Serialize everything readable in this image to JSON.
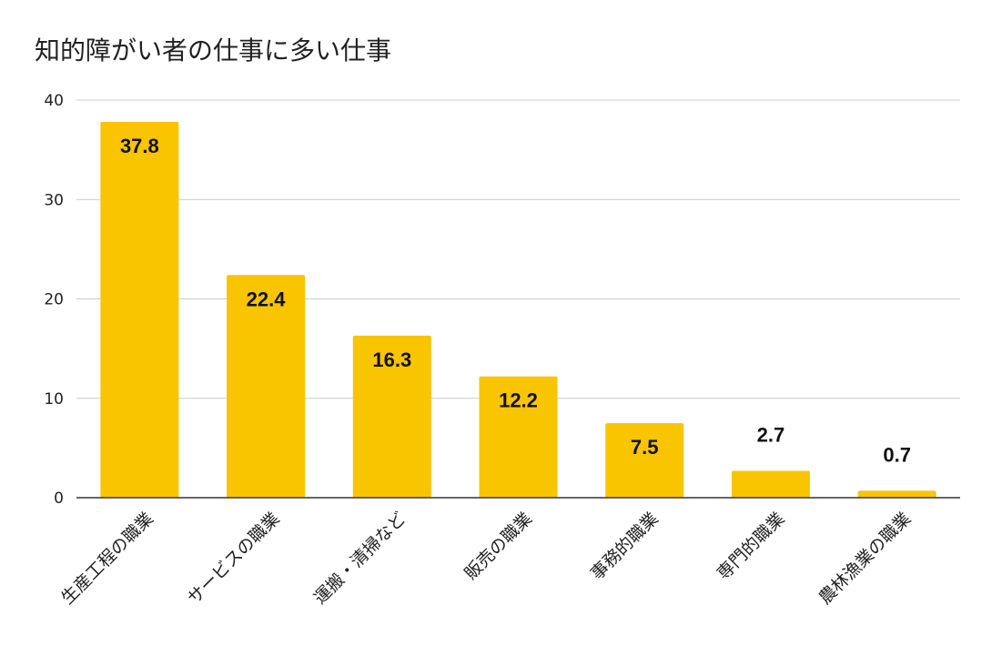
{
  "chart_data": {
    "type": "bar",
    "title": "知的障がい者の仕事に多い仕事",
    "categories": [
      "生産工程の職業",
      "サービスの職業",
      "運搬・清掃など",
      "販売の職業",
      "事務的職業",
      "専門的職業",
      "農林漁業の職業"
    ],
    "values": [
      37.8,
      22.4,
      16.3,
      12.2,
      7.5,
      2.7,
      0.7
    ],
    "data_labels": [
      "37.8",
      "22.4",
      "16.3",
      "12.2",
      "7.5",
      "2.7",
      "0.7"
    ],
    "xlabel": "",
    "ylabel": "",
    "ylim": [
      0,
      40
    ],
    "yticks": [
      0,
      10,
      20,
      30,
      40
    ],
    "ytick_labels": [
      "0",
      "10",
      "20",
      "30",
      "40"
    ],
    "grid": true,
    "legend": "none",
    "bar_color": "#F9C400",
    "grid_color": "#CCCCCC",
    "axis_color": "#333333"
  }
}
